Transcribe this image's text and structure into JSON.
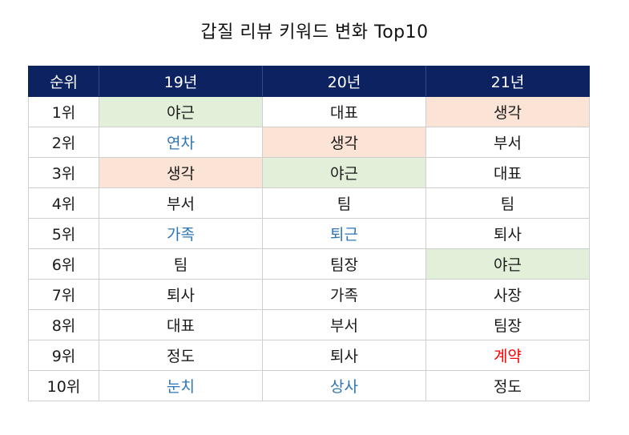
{
  "chart_data": {
    "type": "table",
    "title": "갑질 리뷰 키워드 변화 Top10",
    "columns": [
      "순위",
      "19년",
      "20년",
      "21년"
    ],
    "rows": [
      {
        "rank": "1위",
        "cells": [
          {
            "text": "야근",
            "fill": "#e2efd9",
            "color": "#1a1a1a"
          },
          {
            "text": "대표",
            "fill": "#ffffff",
            "color": "#1a1a1a"
          },
          {
            "text": "생각",
            "fill": "#fbe3d6",
            "color": "#1a1a1a"
          }
        ]
      },
      {
        "rank": "2위",
        "cells": [
          {
            "text": "연차",
            "fill": "#ffffff",
            "color": "#2e75b6"
          },
          {
            "text": "생각",
            "fill": "#fbe3d6",
            "color": "#1a1a1a"
          },
          {
            "text": "부서",
            "fill": "#ffffff",
            "color": "#1a1a1a"
          }
        ]
      },
      {
        "rank": "3위",
        "cells": [
          {
            "text": "생각",
            "fill": "#fbe3d6",
            "color": "#1a1a1a"
          },
          {
            "text": "야근",
            "fill": "#e2efd9",
            "color": "#1a1a1a"
          },
          {
            "text": "대표",
            "fill": "#ffffff",
            "color": "#1a1a1a"
          }
        ]
      },
      {
        "rank": "4위",
        "cells": [
          {
            "text": "부서",
            "fill": "#ffffff",
            "color": "#1a1a1a"
          },
          {
            "text": "팀",
            "fill": "#ffffff",
            "color": "#1a1a1a"
          },
          {
            "text": "팀",
            "fill": "#ffffff",
            "color": "#1a1a1a"
          }
        ]
      },
      {
        "rank": "5위",
        "cells": [
          {
            "text": "가족",
            "fill": "#ffffff",
            "color": "#2e75b6"
          },
          {
            "text": "퇴근",
            "fill": "#ffffff",
            "color": "#2e75b6"
          },
          {
            "text": "퇴사",
            "fill": "#ffffff",
            "color": "#1a1a1a"
          }
        ]
      },
      {
        "rank": "6위",
        "cells": [
          {
            "text": "팀",
            "fill": "#ffffff",
            "color": "#1a1a1a"
          },
          {
            "text": "팀장",
            "fill": "#ffffff",
            "color": "#1a1a1a"
          },
          {
            "text": "야근",
            "fill": "#e2efd9",
            "color": "#1a1a1a"
          }
        ]
      },
      {
        "rank": "7위",
        "cells": [
          {
            "text": "퇴사",
            "fill": "#ffffff",
            "color": "#1a1a1a"
          },
          {
            "text": "가족",
            "fill": "#ffffff",
            "color": "#1a1a1a"
          },
          {
            "text": "사장",
            "fill": "#ffffff",
            "color": "#1a1a1a"
          }
        ]
      },
      {
        "rank": "8위",
        "cells": [
          {
            "text": "대표",
            "fill": "#ffffff",
            "color": "#1a1a1a"
          },
          {
            "text": "부서",
            "fill": "#ffffff",
            "color": "#1a1a1a"
          },
          {
            "text": "팀장",
            "fill": "#ffffff",
            "color": "#1a1a1a"
          }
        ]
      },
      {
        "rank": "9위",
        "cells": [
          {
            "text": "정도",
            "fill": "#ffffff",
            "color": "#1a1a1a"
          },
          {
            "text": "퇴사",
            "fill": "#ffffff",
            "color": "#1a1a1a"
          },
          {
            "text": "계약",
            "fill": "#ffffff",
            "color": "#ff0000"
          }
        ]
      },
      {
        "rank": "10위",
        "cells": [
          {
            "text": "눈치",
            "fill": "#ffffff",
            "color": "#2e75b6"
          },
          {
            "text": "상사",
            "fill": "#ffffff",
            "color": "#2e75b6"
          },
          {
            "text": "정도",
            "fill": "#ffffff",
            "color": "#1a1a1a"
          }
        ]
      }
    ],
    "colors": {
      "header_bg": "#0d2361",
      "header_text": "#ffffff",
      "highlight_green": "#e2efd9",
      "highlight_pink": "#fbe3d6",
      "text_blue": "#2e75b6",
      "text_red": "#ff0000",
      "text_default": "#1a1a1a",
      "grid": "#cfcfcf"
    }
  }
}
